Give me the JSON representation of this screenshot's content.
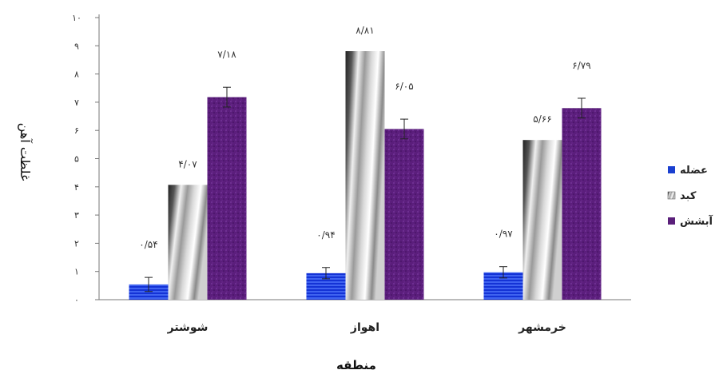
{
  "chart_data": {
    "type": "bar",
    "categories": [
      "شوشتر",
      "اهواز",
      "خرمشهر"
    ],
    "series": [
      {
        "name": "عضله",
        "values": [
          0.54,
          0.94,
          0.97
        ],
        "labels": [
          "۰/۵۴",
          "۰/۹۴",
          "۰/۹۷"
        ],
        "errors": [
          0.25,
          0.2,
          0.2
        ],
        "color": "#1a3fd0"
      },
      {
        "name": "کبد",
        "values": [
          4.07,
          8.81,
          5.66
        ],
        "labels": [
          "۴/۰۷",
          "۸/۸۱",
          "۵/۶۶"
        ],
        "errors": [
          0,
          0,
          0
        ],
        "color": "#a8a8a8"
      },
      {
        "name": "آبشش",
        "values": [
          7.18,
          6.05,
          6.79
        ],
        "labels": [
          "۷/۱۸",
          "۶/۰۵",
          "۶/۷۹"
        ],
        "errors": [
          0.35,
          0.35,
          0.35
        ],
        "color": "#5a1f7a"
      }
    ],
    "ylim": [
      0,
      10
    ],
    "yticks": [
      "۰",
      "۱",
      "۲",
      "۳",
      "۴",
      "۵",
      "۶",
      "۷",
      "۸",
      "۹",
      "۱۰"
    ],
    "xlabel": "منطقه",
    "ylabel": "غلظت آهن",
    "legend": "right",
    "grid": false
  }
}
